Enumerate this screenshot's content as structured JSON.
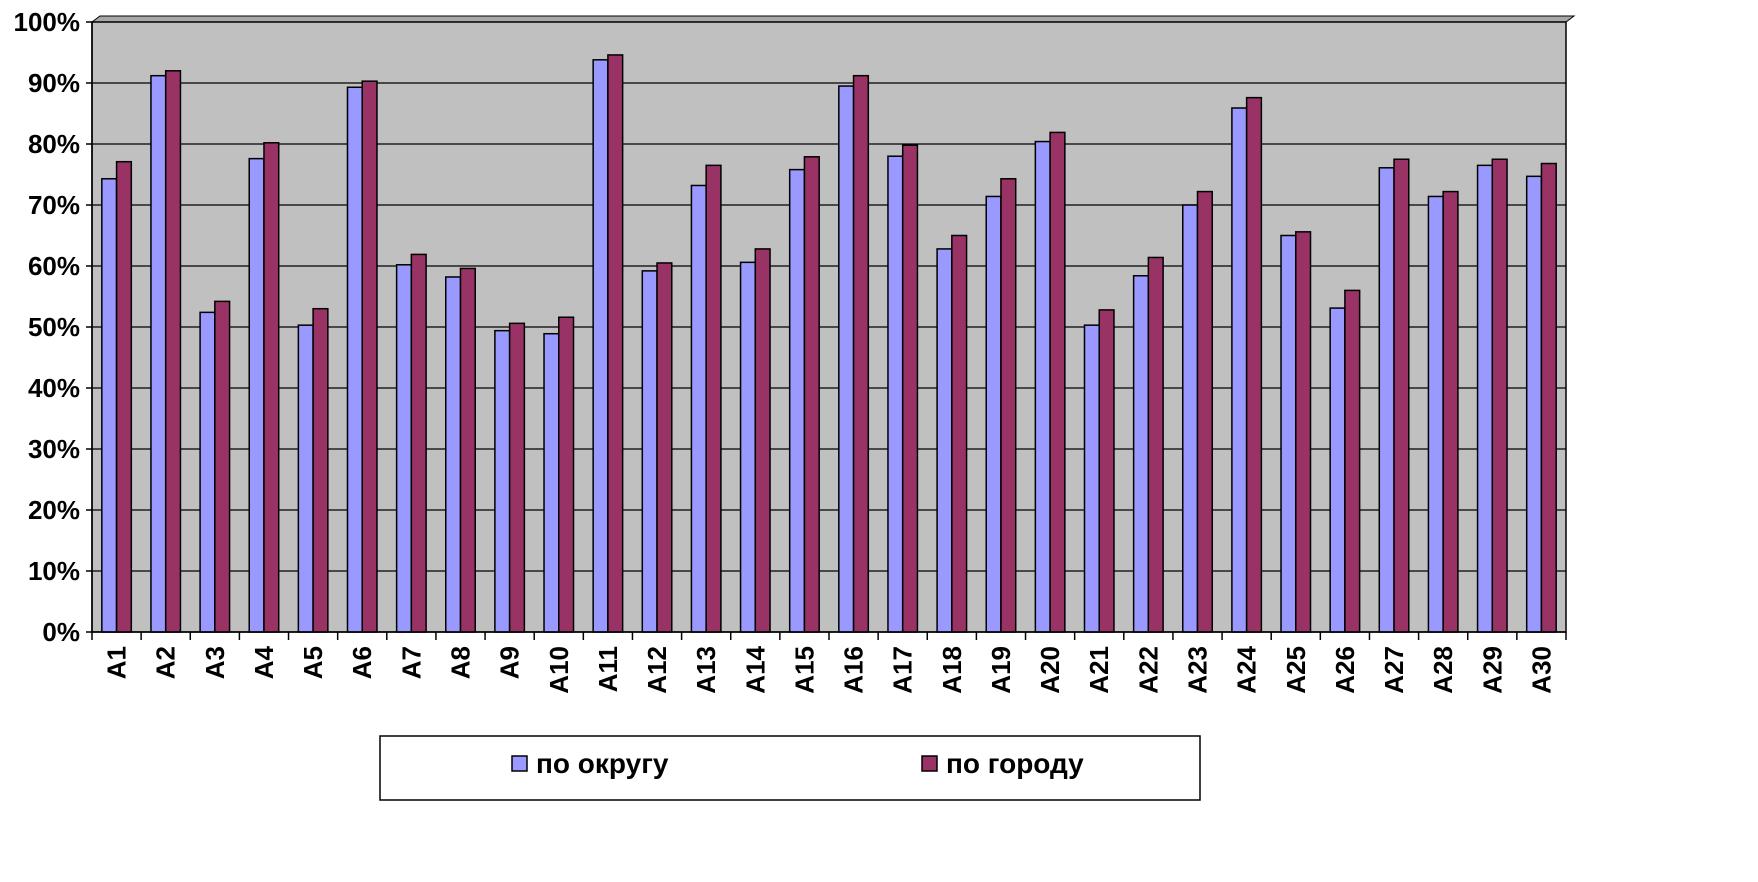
{
  "chart_data": {
    "type": "bar",
    "categories": [
      "A1",
      "A2",
      "A3",
      "A4",
      "A5",
      "A6",
      "A7",
      "A8",
      "A9",
      "A10",
      "A11",
      "A12",
      "A13",
      "A14",
      "A15",
      "A16",
      "A17",
      "A18",
      "A19",
      "A20",
      "A21",
      "A22",
      "A23",
      "A24",
      "A25",
      "A26",
      "A27",
      "A28",
      "A29",
      "A30"
    ],
    "series": [
      {
        "name": "по округу",
        "color": "#9999ff",
        "values": [
          74.3,
          91.2,
          52.4,
          77.6,
          50.3,
          89.3,
          60.2,
          58.2,
          49.4,
          48.9,
          93.8,
          59.2,
          73.2,
          60.6,
          75.8,
          89.5,
          78.0,
          62.8,
          71.4,
          80.4,
          50.3,
          58.4,
          70.0,
          85.9,
          65.0,
          53.1,
          76.1,
          71.4,
          76.5,
          74.7
        ]
      },
      {
        "name": "по городу",
        "color": "#993366",
        "values": [
          77.1,
          92.0,
          54.2,
          80.2,
          53.0,
          90.3,
          61.9,
          59.6,
          50.6,
          51.6,
          94.6,
          60.5,
          76.5,
          62.8,
          77.9,
          91.2,
          79.8,
          65.0,
          74.3,
          81.9,
          52.8,
          61.4,
          72.2,
          87.6,
          65.6,
          56.0,
          77.5,
          72.2,
          77.5,
          76.8
        ]
      }
    ],
    "y_tick_labels": [
      "0%",
      "10%",
      "20%",
      "30%",
      "40%",
      "50%",
      "60%",
      "70%",
      "80%",
      "90%",
      "100%"
    ],
    "ylim": [
      0,
      100
    ],
    "grid": true,
    "legend_position": "bottom",
    "plot_background": "#c0c0c0",
    "title": "",
    "xlabel": "",
    "ylabel": ""
  }
}
